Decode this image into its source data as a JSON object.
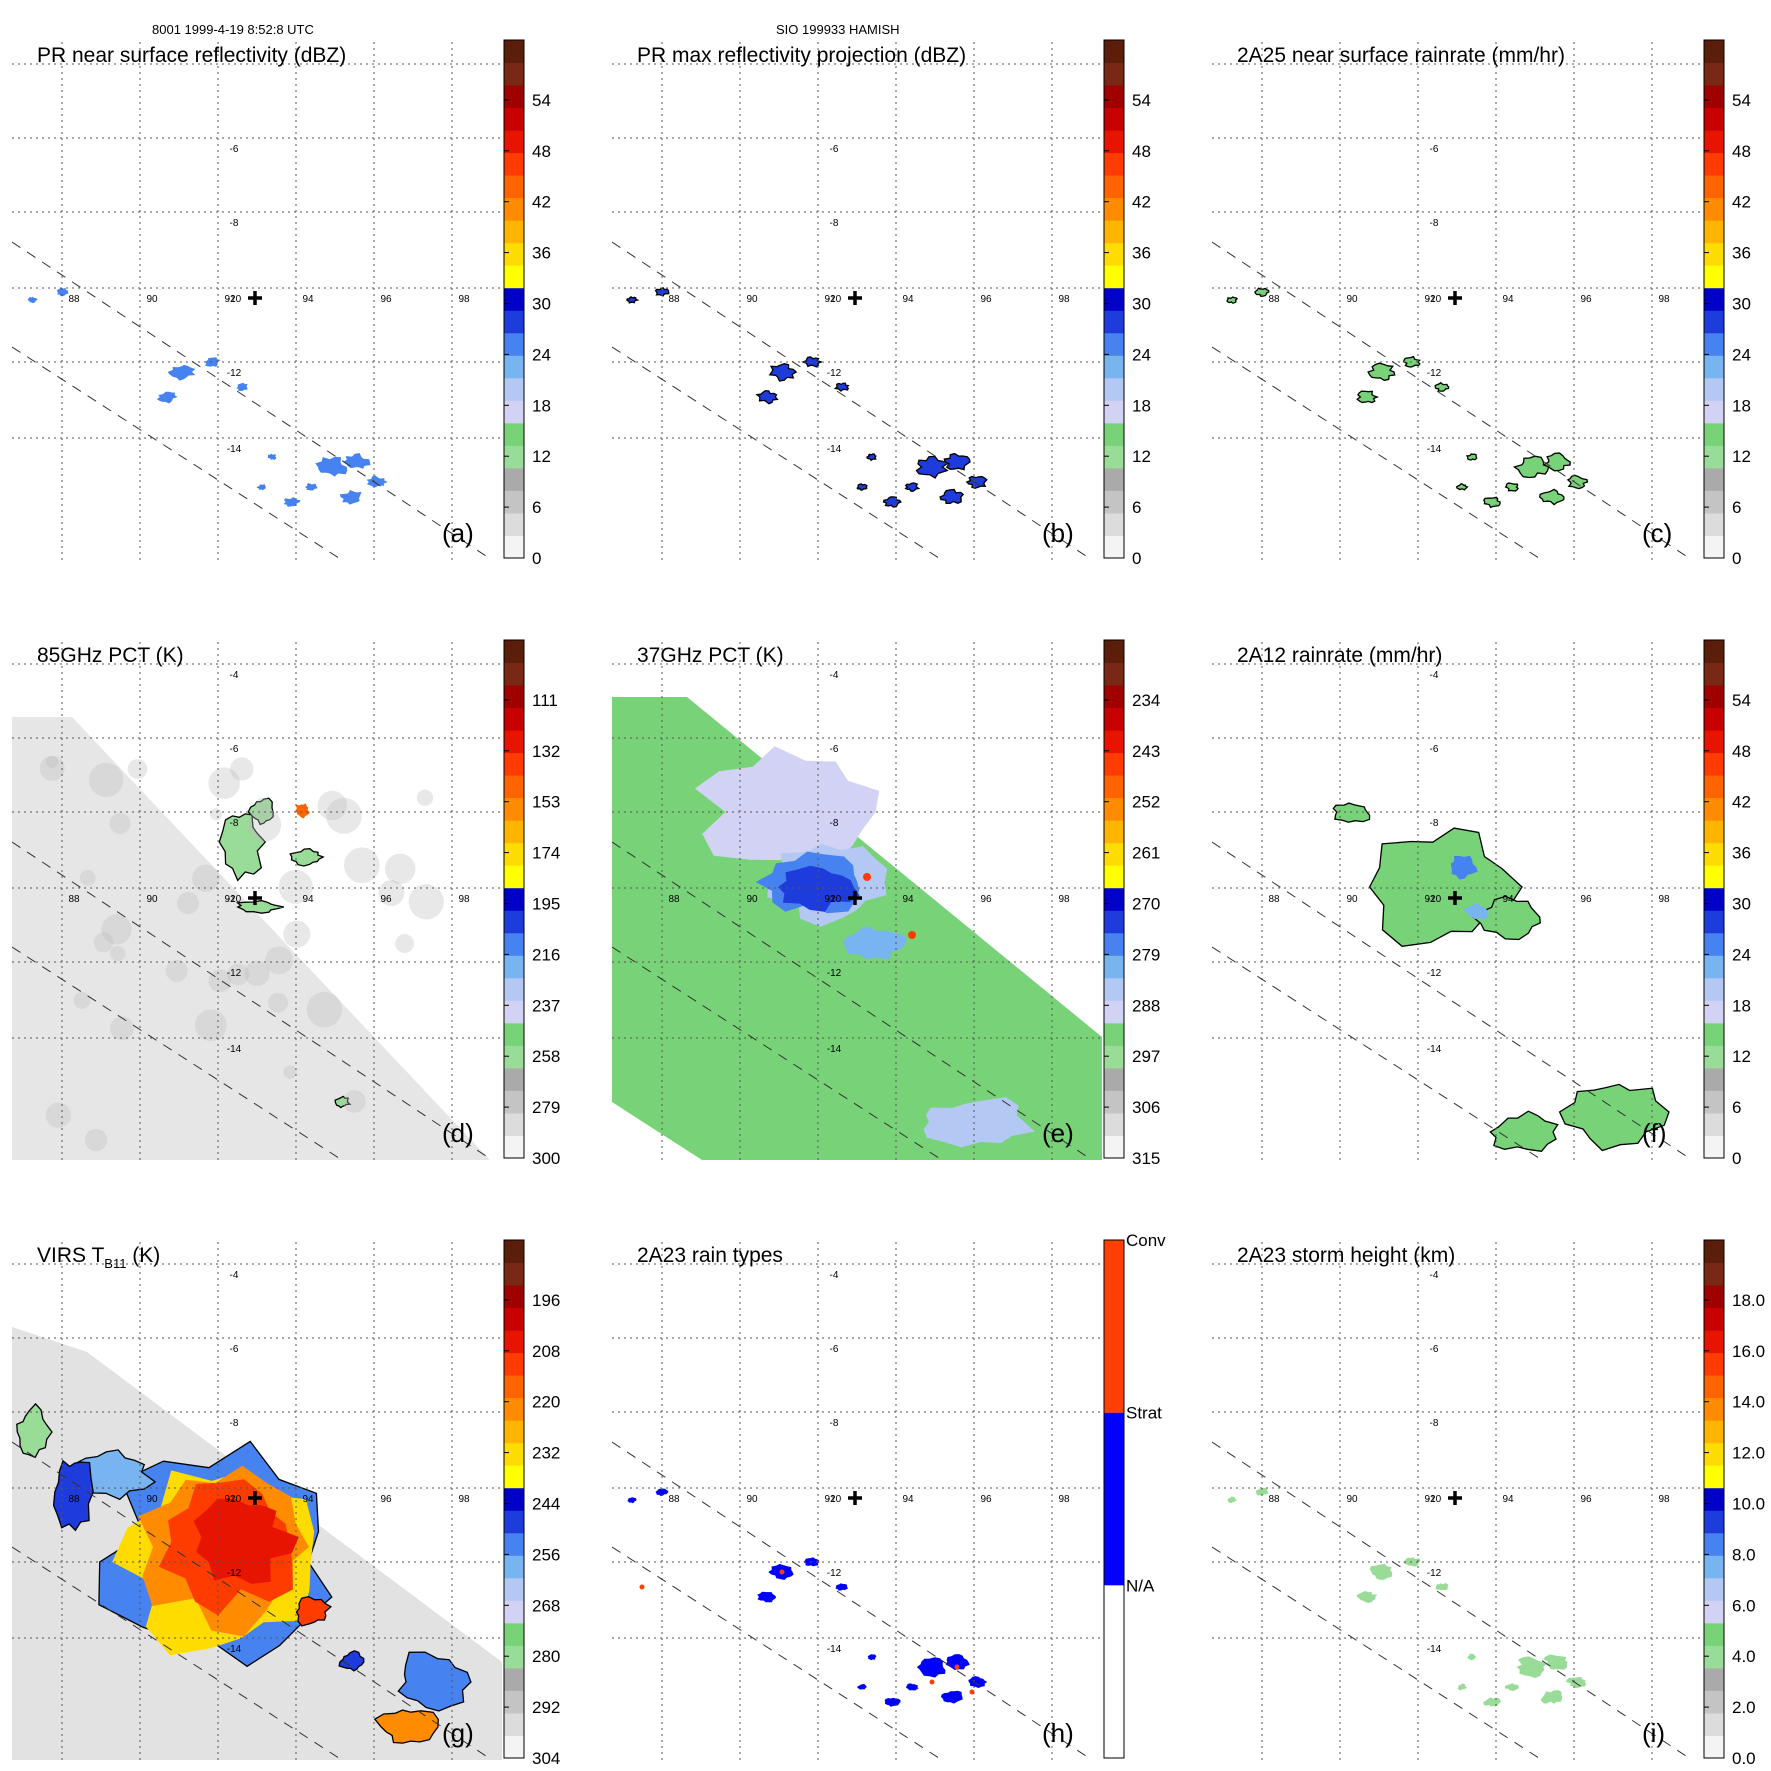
{
  "header": {
    "orbit_time": "8001 1999-4-19 8:52:8 UTC",
    "storm": "SIO 199933 HAMISH"
  },
  "map": {
    "lon_labels": [
      "88",
      "90",
      "92",
      "94",
      "96",
      "98"
    ],
    "lat_labels": [
      "-4",
      "-6",
      "-8",
      "-10",
      "-12",
      "-14"
    ]
  },
  "colors": {
    "precip_scale": [
      "#f4f4f4",
      "#dcdcdc",
      "#c4c4c4",
      "#aaaaaa",
      "#98dc98",
      "#78d278",
      "#d2d2f4",
      "#b4c8f4",
      "#78b4f0",
      "#4682f0",
      "#1e3cdc",
      "#0000c8",
      "#ffff00",
      "#ffdc00",
      "#ffb400",
      "#ff8c00",
      "#ff6400",
      "#ff3c00",
      "#e61400",
      "#c80000",
      "#a00000",
      "#782814",
      "#5a1e0a"
    ],
    "raintype_scale": [
      "#ffffff",
      "#0000ff",
      "#ff4000"
    ]
  },
  "chart_data": [
    {
      "type": "heatmap",
      "panel": "a",
      "title": "PR near surface reflectivity (dBZ)",
      "colorbar_ticks": [
        "0",
        "6",
        "12",
        "18",
        "24",
        "30",
        "36",
        "42",
        "48",
        "54"
      ],
      "cbar_range": [
        0,
        60
      ]
    },
    {
      "type": "heatmap",
      "panel": "b",
      "title": "PR max reflectivity projection (dBZ)",
      "colorbar_ticks": [
        "0",
        "6",
        "12",
        "18",
        "24",
        "30",
        "36",
        "42",
        "48",
        "54"
      ],
      "cbar_range": [
        0,
        60
      ]
    },
    {
      "type": "heatmap",
      "panel": "c",
      "title": "2A25 near surface rainrate (mm/hr)",
      "colorbar_ticks": [
        "0",
        "6",
        "12",
        "18",
        "24",
        "30",
        "36",
        "42",
        "48",
        "54"
      ],
      "cbar_range": [
        0,
        60
      ]
    },
    {
      "type": "heatmap",
      "panel": "d",
      "title": "85GHz PCT (K)",
      "colorbar_ticks": [
        "300",
        "279",
        "258",
        "237",
        "216",
        "195",
        "174",
        "153",
        "132",
        "111"
      ],
      "cbar_range": [
        300,
        90
      ]
    },
    {
      "type": "heatmap",
      "panel": "e",
      "title": "37GHz PCT (K)",
      "colorbar_ticks": [
        "315",
        "306",
        "297",
        "288",
        "279",
        "270",
        "261",
        "252",
        "243",
        "234"
      ],
      "cbar_range": [
        315,
        225
      ]
    },
    {
      "type": "heatmap",
      "panel": "f",
      "title": "2A12 rainrate (mm/hr)",
      "colorbar_ticks": [
        "0",
        "6",
        "12",
        "18",
        "24",
        "30",
        "36",
        "42",
        "48",
        "54"
      ],
      "cbar_range": [
        0,
        60
      ]
    },
    {
      "type": "heatmap",
      "panel": "g",
      "title_main": "VIRS T",
      "title_sub": "B11",
      "title_unit": " (K)",
      "colorbar_ticks": [
        "304",
        "292",
        "280",
        "268",
        "256",
        "244",
        "232",
        "220",
        "208",
        "196"
      ],
      "cbar_range": [
        304,
        184
      ]
    },
    {
      "type": "heatmap",
      "panel": "h",
      "title": "2A23 rain types",
      "colorbar_ticks": [
        "N/A",
        "Strat",
        "Conv"
      ],
      "categorical": true
    },
    {
      "type": "heatmap",
      "panel": "i",
      "title": "2A23 storm height (km)",
      "colorbar_ticks": [
        "0.0",
        "2.0",
        "4.0",
        "6.0",
        "8.0",
        "10.0",
        "12.0",
        "14.0",
        "16.0",
        "18.0"
      ],
      "cbar_range": [
        0,
        20
      ]
    }
  ]
}
